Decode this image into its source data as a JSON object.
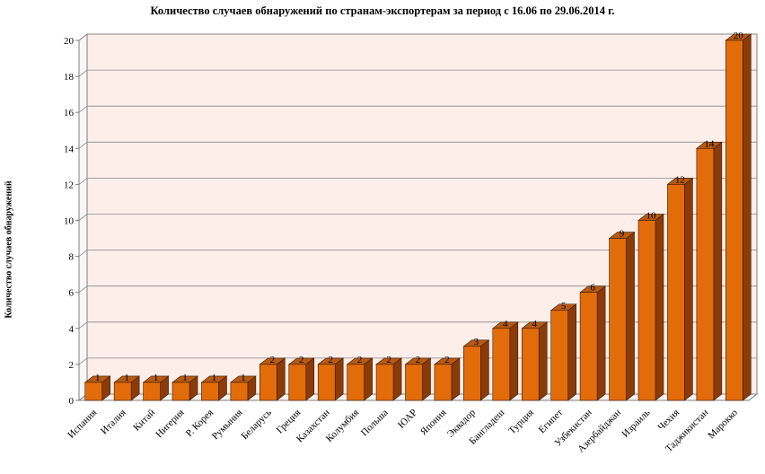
{
  "colors": {
    "bar_front": "#e36c0a",
    "bar_side": "#8a3b08",
    "bar_top": "#b65a14",
    "back_wall": "#fdeee9",
    "grid": "#888888",
    "axis": "#808080"
  },
  "chart_data": {
    "type": "bar",
    "title": "Количество случаев обнаружений по странам-экспортерам за период с 16.06 по 29.06.2014 г.",
    "xlabel": "",
    "ylabel": "Количество случаев обнаружений",
    "ylim": [
      0,
      20
    ],
    "yticks": [
      0,
      2,
      4,
      6,
      8,
      10,
      12,
      14,
      16,
      18,
      20
    ],
    "grid": true,
    "legend": "none",
    "style": "3d-column",
    "categories": [
      "Испания",
      "Италия",
      "Китай",
      "Нигерия",
      "Р. Корея",
      "Румыния",
      "Беларусь",
      "Греция",
      "Казахстан",
      "Колумбия",
      "Польша",
      "ЮАР",
      "Япония",
      "Эквадор",
      "Бангладеш",
      "Турция",
      "Египет",
      "Узбекистан",
      "Азербайджан",
      "Израиль",
      "Чехия",
      "Таджикистан",
      "Марокко"
    ],
    "values": [
      1,
      1,
      1,
      1,
      1,
      1,
      2,
      2,
      2,
      2,
      2,
      2,
      2,
      3,
      4,
      4,
      5,
      6,
      9,
      10,
      12,
      14,
      20
    ],
    "data_labels": [
      "1",
      "1",
      "1",
      "1",
      "1",
      "1",
      "2",
      "2",
      "2",
      "2",
      "2",
      "2",
      "2",
      "3",
      "4",
      "4",
      "5",
      "6",
      "9",
      "10",
      "12",
      "14",
      "20"
    ]
  }
}
